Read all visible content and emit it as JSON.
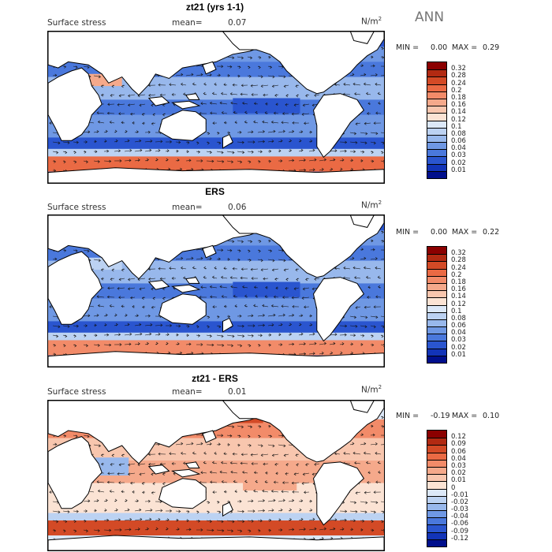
{
  "season": "ANN",
  "panels": [
    {
      "title": "zt21 (yrs 1-1)",
      "field": "Surface stress",
      "mean_label": "mean=",
      "mean_value": "0.07",
      "units": "N/m",
      "units_exp": "2",
      "min_label": "MIN =",
      "min_value": "0.00",
      "max_label": "MAX =",
      "max_value": "0.29",
      "scale": [
        "0.32",
        "0.28",
        "0.24",
        "0.2",
        "0.18",
        "0.16",
        "0.14",
        "0.12",
        "0.1",
        "0.08",
        "0.06",
        "0.04",
        "0.03",
        "0.02",
        "0.01"
      ],
      "colors": [
        "#8b0000",
        "#b22a12",
        "#d34a26",
        "#ea6a44",
        "#f28b69",
        "#f5a98b",
        "#f8c6ae",
        "#fbe3d4",
        "#dce8f8",
        "#bcd2f2",
        "#98b8ec",
        "#6f98e4",
        "#4a78dc",
        "#2a55cf",
        "#1234b8",
        "#000f8c"
      ]
    },
    {
      "title": "ERS",
      "field": "Surface stress",
      "mean_label": "mean=",
      "mean_value": "0.06",
      "units": "N/m",
      "units_exp": "2",
      "min_label": "MIN =",
      "min_value": "0.00",
      "max_label": "MAX =",
      "max_value": "0.22",
      "scale": [
        "0.32",
        "0.28",
        "0.24",
        "0.2",
        "0.18",
        "0.16",
        "0.14",
        "0.12",
        "0.1",
        "0.08",
        "0.06",
        "0.04",
        "0.03",
        "0.02",
        "0.01"
      ],
      "colors": [
        "#8b0000",
        "#b22a12",
        "#d34a26",
        "#ea6a44",
        "#f28b69",
        "#f5a98b",
        "#f8c6ae",
        "#fbe3d4",
        "#dce8f8",
        "#bcd2f2",
        "#98b8ec",
        "#6f98e4",
        "#4a78dc",
        "#2a55cf",
        "#1234b8",
        "#000f8c"
      ]
    },
    {
      "title": "zt21 - ERS",
      "field": "Surface stress",
      "mean_label": "mean=",
      "mean_value": "0.01",
      "units": "N/m",
      "units_exp": "2",
      "min_label": "MIN =",
      "min_value": "-0.19",
      "max_label": "MAX =",
      "max_value": "0.10",
      "scale": [
        "0.12",
        "0.09",
        "0.06",
        "0.04",
        "0.03",
        "0.02",
        "0.01",
        "0",
        "-0.01",
        "-0.02",
        "-0.03",
        "-0.04",
        "-0.06",
        "-0.09",
        "-0.12"
      ],
      "colors": [
        "#8b0000",
        "#b22a12",
        "#d34a26",
        "#ea6a44",
        "#f28b69",
        "#f5a98b",
        "#f8c6ae",
        "#fbe3d4",
        "#dce8f8",
        "#bcd2f2",
        "#98b8ec",
        "#6f98e4",
        "#4a78dc",
        "#2a55cf",
        "#1234b8",
        "#000f8c"
      ]
    }
  ]
}
